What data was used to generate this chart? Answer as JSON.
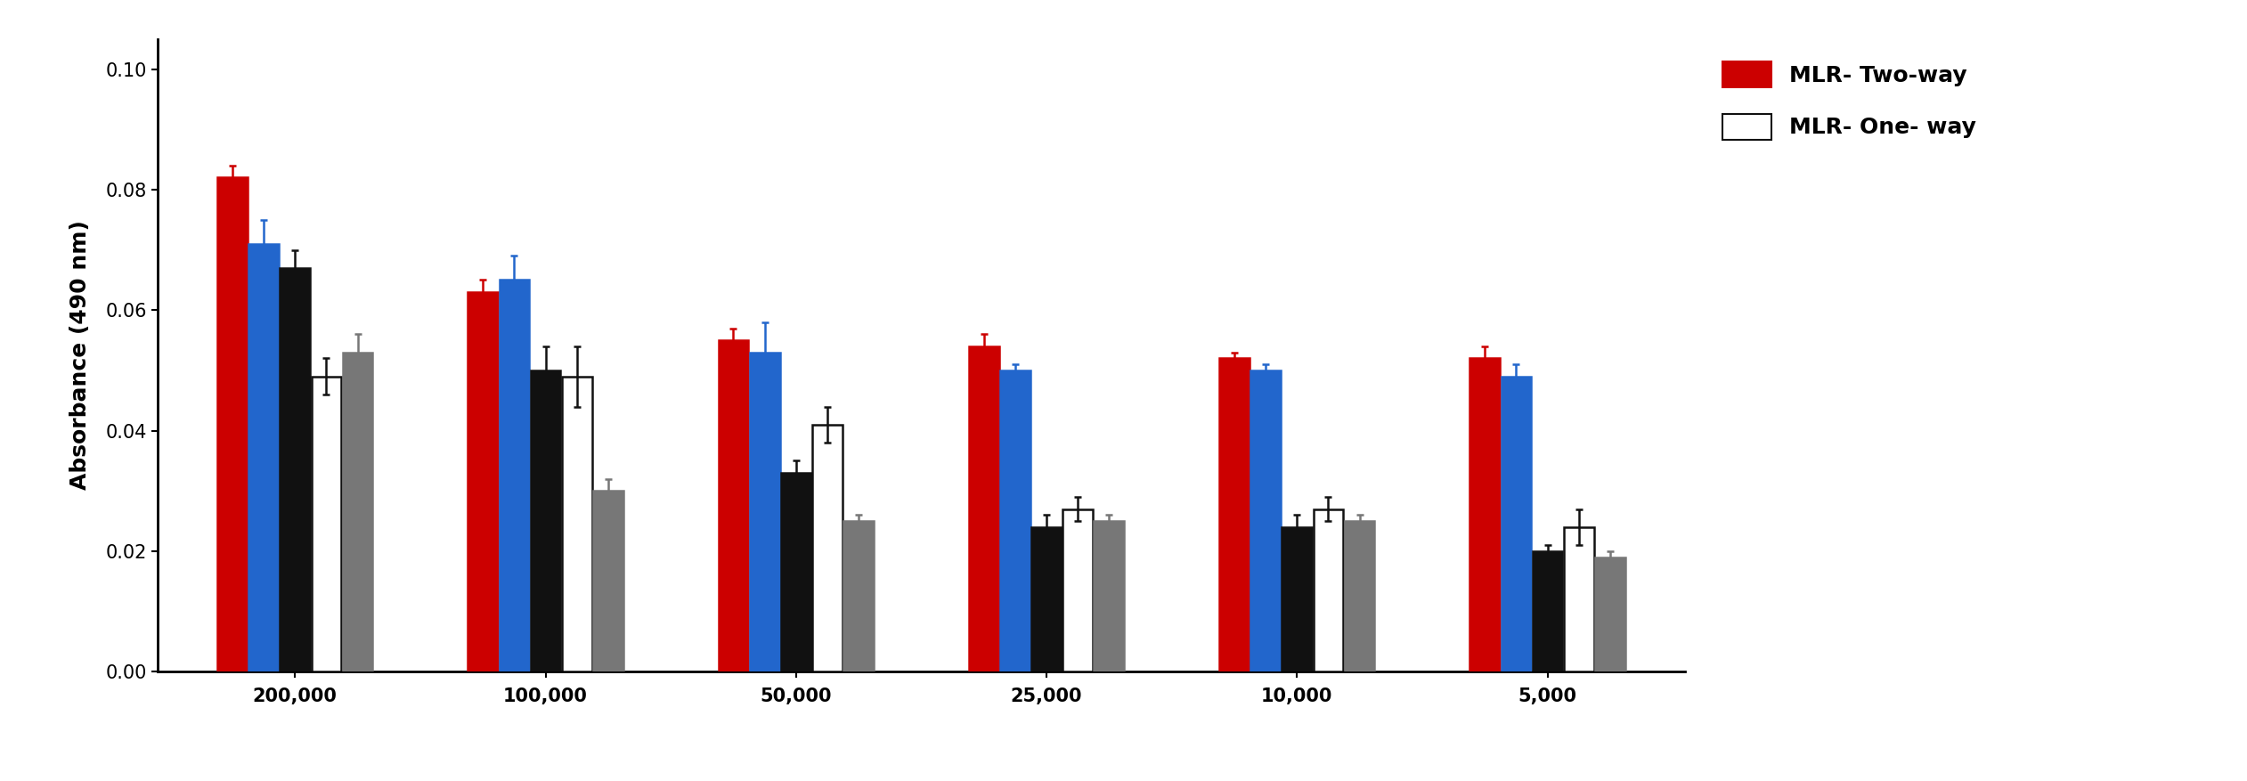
{
  "categories": [
    "200,000",
    "100,000",
    "50,000",
    "25,000",
    "10,000",
    "5,000"
  ],
  "bar_colors": [
    "#cc0000",
    "#2266cc",
    "#111111",
    "#ffffff",
    "#777777"
  ],
  "bar_edgecolors": [
    "#cc0000",
    "#2266cc",
    "#111111",
    "#111111",
    "#777777"
  ],
  "err_colors": [
    "#cc0000",
    "#2266cc",
    "#111111",
    "#111111",
    "#777777"
  ],
  "values": {
    "red": [
      0.082,
      0.063,
      0.055,
      0.054,
      0.052,
      0.052
    ],
    "blue": [
      0.071,
      0.065,
      0.053,
      0.05,
      0.05,
      0.049
    ],
    "black": [
      0.067,
      0.05,
      0.033,
      0.024,
      0.024,
      0.02
    ],
    "white": [
      0.049,
      0.049,
      0.041,
      0.027,
      0.027,
      0.024
    ],
    "gray": [
      0.053,
      0.03,
      0.025,
      0.025,
      0.025,
      0.019
    ]
  },
  "errors": {
    "red": [
      0.002,
      0.002,
      0.002,
      0.002,
      0.001,
      0.002
    ],
    "blue": [
      0.004,
      0.004,
      0.005,
      0.001,
      0.001,
      0.002
    ],
    "black": [
      0.003,
      0.004,
      0.002,
      0.002,
      0.002,
      0.001
    ],
    "white": [
      0.003,
      0.005,
      0.003,
      0.002,
      0.002,
      0.003
    ],
    "gray": [
      0.003,
      0.002,
      0.001,
      0.001,
      0.001,
      0.001
    ]
  },
  "ylabel": "Absorbance (490 nm)",
  "ylim": [
    0.0,
    0.105
  ],
  "yticks": [
    0.0,
    0.02,
    0.04,
    0.06,
    0.08,
    0.1
  ],
  "legend_labels": [
    "MLR- Two-way",
    "MLR- One- way"
  ],
  "background_color": "#ffffff",
  "bar_width": 0.12,
  "group_width": 0.75,
  "capsize": 3,
  "axis_fontsize": 18,
  "tick_fontsize": 15,
  "legend_fontsize": 18
}
